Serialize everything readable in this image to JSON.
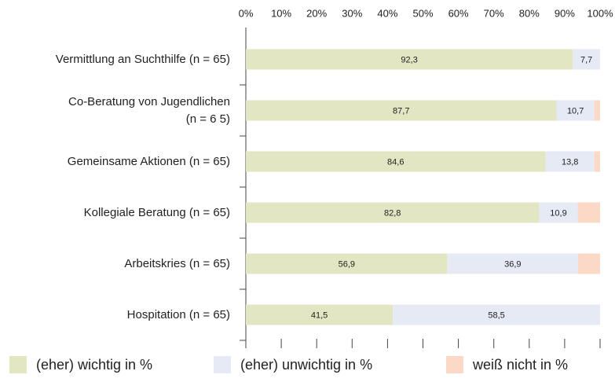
{
  "chart_data": {
    "type": "stacked-barh",
    "categories": [
      "Vermittlung an Suchthilfe (n = 65)",
      "Co-Beratung von Jugendlichen\n(n = 6 5)",
      "Gemeinsame Aktionen (n = 65)",
      "Kollegiale Beratung (n = 65)",
      "Arbeitskries (n = 65)",
      "Hospitation (n = 65)"
    ],
    "series": [
      {
        "name": "(eher) wichtig in %",
        "color": "#e3e6c3",
        "values": [
          92.3,
          87.7,
          84.6,
          82.8,
          56.9,
          41.5
        ],
        "value_labels": [
          "92,3",
          "87,7",
          "84,6",
          "82,8",
          "56,9",
          "41,5"
        ]
      },
      {
        "name": "(eher) unwichtig in %",
        "color": "#e6eaf5",
        "values": [
          7.7,
          10.7,
          13.8,
          10.9,
          36.9,
          58.5
        ],
        "value_labels": [
          "7,7",
          "10,7",
          "13,8",
          "10,9",
          "36,9",
          "58,5"
        ]
      },
      {
        "name": "weiß nicht in %",
        "color": "#fbd9c6",
        "values": [
          0,
          1.6,
          1.6,
          6.3,
          6.2,
          0
        ]
      }
    ],
    "xlim": [
      0,
      100
    ],
    "xticks": [
      {
        "value": 0,
        "label": "0%"
      },
      {
        "value": 10,
        "label": "10%"
      },
      {
        "value": 20,
        "label": "20%"
      },
      {
        "value": 30,
        "label": "30%"
      },
      {
        "value": 40,
        "label": "40%"
      },
      {
        "value": 50,
        "label": "50%"
      },
      {
        "value": 60,
        "label": "60%"
      },
      {
        "value": 70,
        "label": "70%"
      },
      {
        "value": 80,
        "label": "80%"
      },
      {
        "value": 90,
        "label": "90%"
      },
      {
        "value": 100,
        "label": "100%"
      }
    ],
    "legend": "bottom"
  }
}
